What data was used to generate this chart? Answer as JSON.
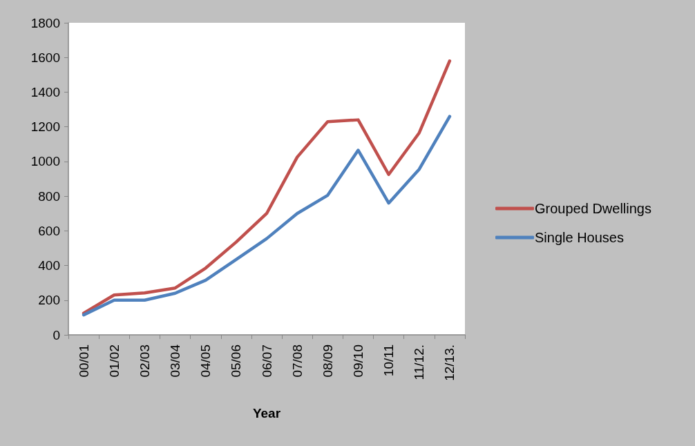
{
  "chart_data": {
    "type": "line",
    "xlabel": "Year",
    "categories": [
      "00/01",
      "01/02",
      "02/03",
      "03/04",
      "04/05",
      "05/06",
      "06/07",
      "07/08",
      "08/09",
      "09/10",
      "10/11",
      "11/12.",
      "12/13."
    ],
    "series": [
      {
        "name": "Grouped Dwellings",
        "color": "#c0504d",
        "values": [
          125,
          230,
          242,
          270,
          385,
          535,
          700,
          1025,
          1230,
          1240,
          925,
          1165,
          1580
        ]
      },
      {
        "name": "Single Houses",
        "color": "#4f81bd",
        "values": [
          115,
          200,
          200,
          240,
          315,
          435,
          555,
          700,
          805,
          1065,
          760,
          955,
          1260
        ]
      }
    ],
    "ylim": [
      0,
      1800
    ],
    "yticks": [
      0,
      200,
      400,
      600,
      800,
      1000,
      1200,
      1400,
      1600,
      1800
    ],
    "grid": false,
    "legend": "right",
    "marker": "none",
    "line_style": "solid"
  }
}
